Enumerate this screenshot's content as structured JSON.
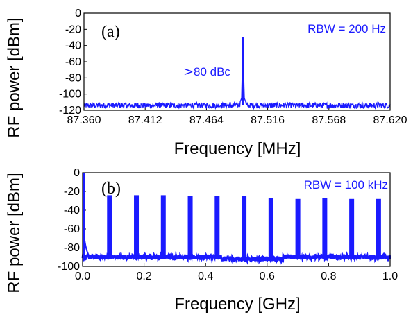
{
  "chart_data": [
    {
      "type": "line",
      "panel_label": "(a)",
      "xlabel": "Frequency [MHz]",
      "ylabel": "RF power [dBm]",
      "xlim": [
        87.36,
        87.62
      ],
      "ylim": [
        -120,
        0
      ],
      "x_ticks": [
        "87.360",
        "87.412",
        "87.464",
        "87.516",
        "87.568",
        "87.620"
      ],
      "y_ticks": [
        "0",
        "-20",
        "-40",
        "-60",
        "-80",
        "-100",
        "-120"
      ],
      "annotations": {
        "rbw": "RBW = 200 Hz",
        "snr": "80 dBc",
        "snr_symbol": ">"
      },
      "series": [
        {
          "noise_floor_dbm": -114,
          "peak_frequency_mhz": 87.495,
          "peak_power_dbm": -30,
          "color": "#1a1aff"
        }
      ],
      "grid": false
    },
    {
      "type": "line",
      "panel_label": "(b)",
      "xlabel": "Frequency [GHz]",
      "ylabel": "RF power  [dBm]",
      "xlim": [
        0.0,
        1.0
      ],
      "ylim": [
        -100,
        0
      ],
      "x_ticks": [
        "0.0",
        "0.2",
        "0.4",
        "0.6",
        "0.8",
        "1.0"
      ],
      "y_ticks": [
        "0",
        "-20",
        "-40",
        "-60",
        "-80",
        "-100"
      ],
      "annotations": {
        "rbw": "RBW = 100 kHz"
      },
      "series": [
        {
          "noise_floor_dbm": -90,
          "dc_peak_dbm": 0,
          "harmonics": [
            {
              "frequency_ghz": 0.0875,
              "power_dbm": -24
            },
            {
              "frequency_ghz": 0.175,
              "power_dbm": -24
            },
            {
              "frequency_ghz": 0.2625,
              "power_dbm": -24
            },
            {
              "frequency_ghz": 0.35,
              "power_dbm": -25
            },
            {
              "frequency_ghz": 0.4375,
              "power_dbm": -25
            },
            {
              "frequency_ghz": 0.525,
              "power_dbm": -25
            },
            {
              "frequency_ghz": 0.6125,
              "power_dbm": -27
            },
            {
              "frequency_ghz": 0.7,
              "power_dbm": -28
            },
            {
              "frequency_ghz": 0.7875,
              "power_dbm": -27
            },
            {
              "frequency_ghz": 0.875,
              "power_dbm": -28
            },
            {
              "frequency_ghz": 0.9625,
              "power_dbm": -28
            }
          ],
          "color": "#1a1aff"
        }
      ],
      "grid": false
    }
  ]
}
